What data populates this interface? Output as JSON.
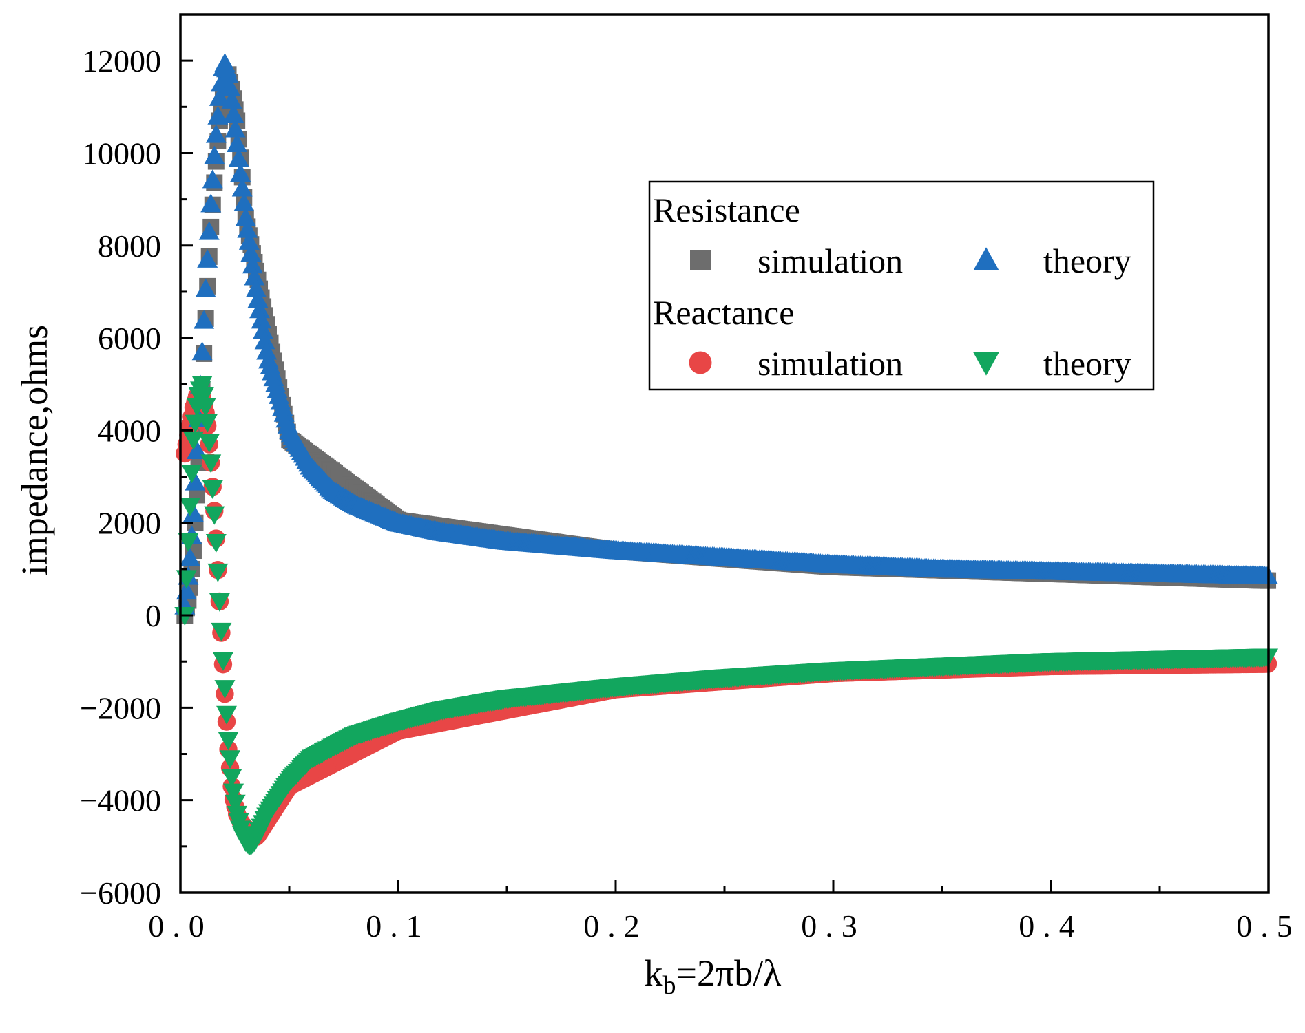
{
  "chart_data": {
    "type": "scatter",
    "title": "",
    "xlabel_base": "k",
    "xlabel_sub": "b",
    "xlabel_rest": "=2πb/λ",
    "ylabel": "impedance,ohms",
    "xlim": [
      0,
      0.5
    ],
    "ylim": [
      -6000,
      13000
    ],
    "x_ticks": [
      0,
      0.1,
      0.2,
      0.3,
      0.4,
      0.5
    ],
    "x_tick_labels": [
      "0.0",
      "0.1",
      "0.2",
      "0.3",
      "0.4",
      "0.5"
    ],
    "y_ticks": [
      -6000,
      -4000,
      -2000,
      0,
      2000,
      4000,
      6000,
      8000,
      10000,
      12000
    ],
    "y_tick_labels": [
      "-6000",
      "-4000",
      "-2000",
      "0",
      "2000",
      "4000",
      "6000",
      "8000",
      "10000",
      "12000"
    ],
    "grid": false,
    "legend_position": "top-right",
    "legend": {
      "groups": [
        {
          "title": "Resistance",
          "entries": [
            {
              "label": "simulation",
              "series": "resistance_simulation"
            },
            {
              "label": "theory",
              "series": "resistance_theory"
            }
          ]
        },
        {
          "title": "Reactance",
          "entries": [
            {
              "label": "simulation",
              "series": "reactance_simulation"
            },
            {
              "label": "theory",
              "series": "reactance_theory"
            }
          ]
        }
      ]
    },
    "series": [
      {
        "name": "resistance_simulation",
        "group": "Resistance",
        "label": "simulation",
        "marker": "square",
        "color": "#6d6d6d",
        "x": [
          0.002,
          0.004,
          0.006,
          0.008,
          0.01,
          0.012,
          0.014,
          0.016,
          0.018,
          0.02,
          0.022,
          0.024,
          0.026,
          0.028,
          0.03,
          0.05,
          0.1,
          0.2,
          0.3,
          0.4,
          0.5
        ],
        "y": [
          0,
          400,
          1400,
          2900,
          4900,
          6800,
          8400,
          9600,
          10700,
          11300,
          11700,
          11300,
          10700,
          9700,
          8600,
          3800,
          2050,
          1400,
          1050,
          900,
          750
        ]
      },
      {
        "name": "resistance_theory",
        "group": "Resistance",
        "label": "theory",
        "marker": "triangle-up",
        "color": "#1f6fbf",
        "x": [
          0.002,
          0.004,
          0.006,
          0.008,
          0.01,
          0.012,
          0.014,
          0.016,
          0.018,
          0.02,
          0.022,
          0.024,
          0.026,
          0.028,
          0.03,
          0.035,
          0.04,
          0.05,
          0.06,
          0.07,
          0.08,
          0.1,
          0.12,
          0.15,
          0.2,
          0.25,
          0.3,
          0.35,
          0.4,
          0.45,
          0.5
        ],
        "y": [
          200,
          1000,
          2200,
          3900,
          5700,
          7400,
          8900,
          10200,
          11200,
          12000,
          11700,
          11000,
          10200,
          9400,
          8600,
          7000,
          5600,
          4000,
          3200,
          2700,
          2400,
          2000,
          1800,
          1600,
          1400,
          1250,
          1100,
          1000,
          950,
          900,
          850
        ]
      },
      {
        "name": "reactance_simulation",
        "group": "Reactance",
        "label": "simulation",
        "marker": "circle",
        "color": "#e84646",
        "x": [
          0.002,
          0.004,
          0.006,
          0.008,
          0.01,
          0.012,
          0.014,
          0.016,
          0.018,
          0.02,
          0.022,
          0.024,
          0.026,
          0.028,
          0.03,
          0.032,
          0.035,
          0.05,
          0.1,
          0.2,
          0.3,
          0.4,
          0.5
        ],
        "y": [
          3500,
          4000,
          4500,
          4800,
          4700,
          4300,
          3300,
          2000,
          300,
          -1400,
          -2900,
          -3900,
          -4300,
          -4500,
          -4600,
          -4700,
          -4800,
          -3700,
          -2500,
          -1600,
          -1250,
          -1100,
          -1050
        ]
      },
      {
        "name": "reactance_theory",
        "group": "Reactance",
        "label": "theory",
        "marker": "triangle-down",
        "color": "#12a65e",
        "x": [
          0.002,
          0.004,
          0.006,
          0.008,
          0.01,
          0.012,
          0.014,
          0.016,
          0.018,
          0.02,
          0.022,
          0.024,
          0.026,
          0.028,
          0.03,
          0.032,
          0.034,
          0.036,
          0.04,
          0.05,
          0.06,
          0.08,
          0.1,
          0.12,
          0.15,
          0.2,
          0.25,
          0.3,
          0.35,
          0.4,
          0.45,
          0.5
        ],
        "y": [
          0,
          2000,
          3800,
          4700,
          5000,
          4400,
          3300,
          1900,
          300,
          -1300,
          -2700,
          -3700,
          -4300,
          -4700,
          -4900,
          -5000,
          -4900,
          -4700,
          -4300,
          -3600,
          -3100,
          -2600,
          -2300,
          -2050,
          -1800,
          -1550,
          -1350,
          -1200,
          -1100,
          -1000,
          -950,
          -900
        ]
      }
    ]
  }
}
